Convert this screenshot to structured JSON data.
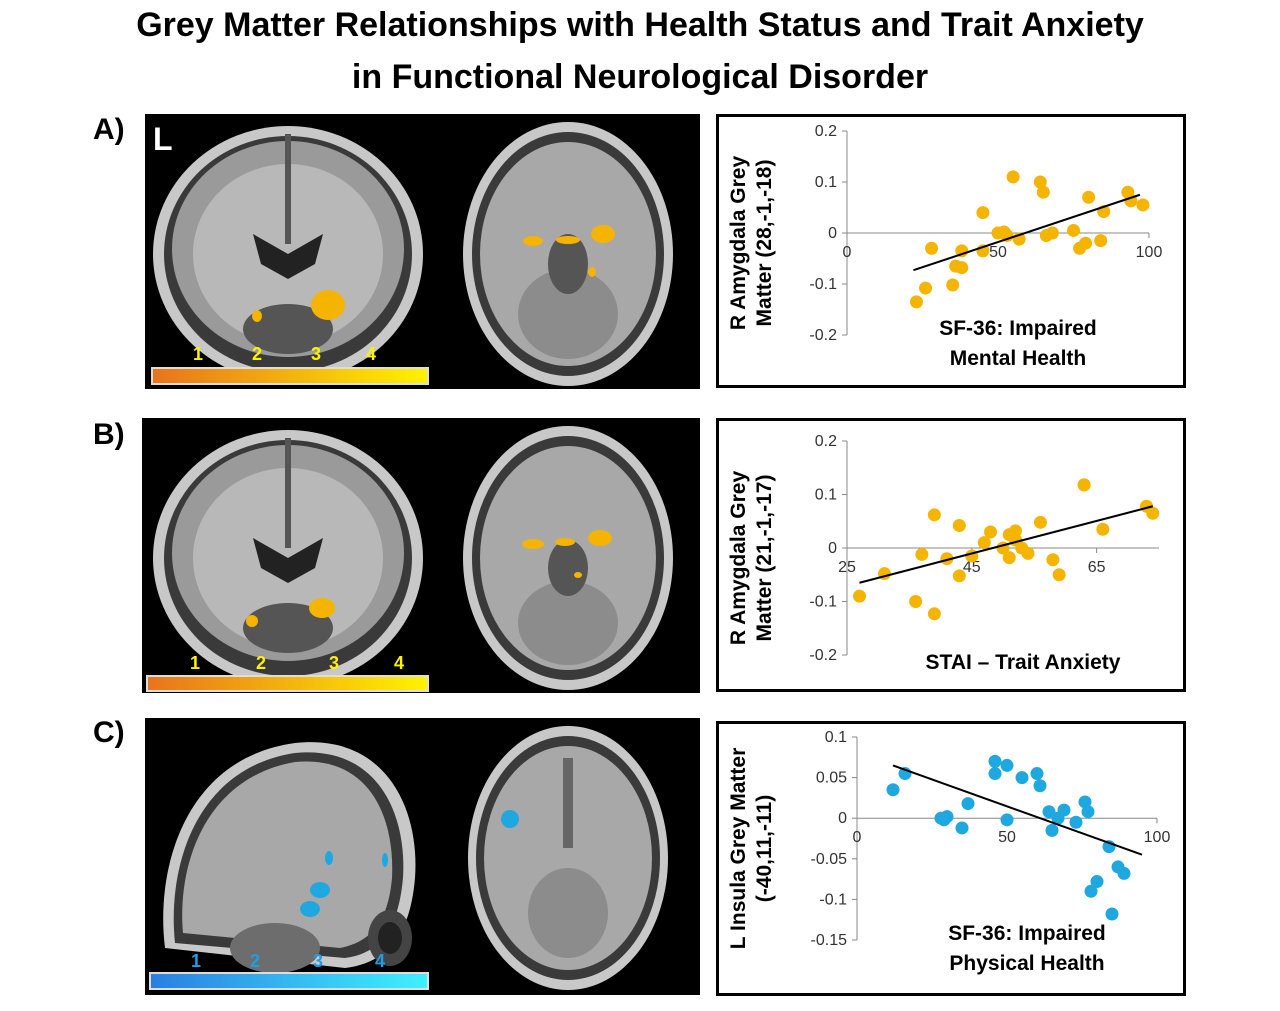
{
  "title": {
    "line1": "Grey Matter Relationships with Health Status and Trait Anxiety",
    "line2": "in Functional Neurological Disorder"
  },
  "colors": {
    "warm": "#f5b400",
    "cool": "#1fa8e0",
    "warm_bar_start": "#e8741c",
    "warm_bar_end": "#fff200",
    "cool_bar_start": "#2a7fe0",
    "cool_bar_end": "#3ff0ff"
  },
  "panels": {
    "a": {
      "label": "A)",
      "side_marker": "L",
      "colorbar_ticks": [
        "1",
        "2",
        "3",
        "4"
      ]
    },
    "b": {
      "label": "B)",
      "colorbar_ticks": [
        "1",
        "2",
        "3",
        "4"
      ]
    },
    "c": {
      "label": "C)",
      "colorbar_ticks": [
        "1",
        "2",
        "3",
        "4"
      ]
    }
  },
  "chart_data": [
    {
      "type": "scatter",
      "ylabel_line1": "R Amygdala Grey",
      "ylabel_line2": "Matter (28,-1,-18)",
      "xlabel_line1": "SF-36: Impaired",
      "xlabel_line2": "Mental Health",
      "xlim": [
        0,
        100
      ],
      "ylim": [
        -0.2,
        0.2
      ],
      "xticks": [
        0,
        50,
        100
      ],
      "yticks": [
        0.2,
        0.1,
        0,
        -0.1,
        -0.2
      ],
      "ytick_labels": [
        "0.2",
        "0.1",
        "0",
        "-0.1",
        "-0.2"
      ],
      "xtick_labels": [
        "0",
        "50",
        "100"
      ],
      "trendline": {
        "x": [
          22,
          97
        ],
        "y": [
          -0.073,
          0.075
        ]
      },
      "points": [
        [
          23,
          -0.135
        ],
        [
          26,
          -0.108
        ],
        [
          28,
          -0.03
        ],
        [
          35,
          -0.102
        ],
        [
          36,
          -0.065
        ],
        [
          38,
          -0.068
        ],
        [
          38,
          -0.035
        ],
        [
          45,
          -0.035
        ],
        [
          45,
          0.04
        ],
        [
          50,
          0.0
        ],
        [
          52,
          0.002
        ],
        [
          53,
          -0.005
        ],
        [
          55,
          0.11
        ],
        [
          57,
          -0.012
        ],
        [
          64,
          0.1
        ],
        [
          65,
          0.08
        ],
        [
          66,
          -0.005
        ],
        [
          68,
          0.0
        ],
        [
          75,
          0.005
        ],
        [
          77,
          -0.03
        ],
        [
          79,
          -0.02
        ],
        [
          80,
          0.07
        ],
        [
          84,
          -0.015
        ],
        [
          85,
          0.042
        ],
        [
          93,
          0.08
        ],
        [
          94,
          0.063
        ],
        [
          98,
          0.055
        ]
      ]
    },
    {
      "type": "scatter",
      "ylabel_line1": "R Amygdala Grey",
      "ylabel_line2": "Matter (21,-1,-17)",
      "xlabel_line1": "STAI – Trait Anxiety",
      "xlabel_line2": "",
      "xlim": [
        25,
        75
      ],
      "ylim": [
        -0.2,
        0.2
      ],
      "xticks": [
        25,
        45,
        65
      ],
      "yticks": [
        0.2,
        0.1,
        0,
        -0.1,
        -0.2
      ],
      "ytick_labels": [
        "0.2",
        "0.1",
        "0",
        "-0.1",
        "-0.2"
      ],
      "xtick_labels": [
        "25",
        "45",
        "65"
      ],
      "trendline": {
        "x": [
          27,
          74
        ],
        "y": [
          -0.065,
          0.078
        ]
      },
      "points": [
        [
          27,
          -0.09
        ],
        [
          31,
          -0.048
        ],
        [
          36,
          -0.1
        ],
        [
          37,
          -0.012
        ],
        [
          39,
          0.062
        ],
        [
          39,
          -0.123
        ],
        [
          41,
          -0.02
        ],
        [
          43,
          0.042
        ],
        [
          43,
          -0.052
        ],
        [
          45,
          -0.015
        ],
        [
          47,
          0.01
        ],
        [
          48,
          0.03
        ],
        [
          50,
          0.0
        ],
        [
          51,
          -0.018
        ],
        [
          51,
          0.025
        ],
        [
          52,
          0.015
        ],
        [
          52,
          0.032
        ],
        [
          53,
          0.0
        ],
        [
          54,
          -0.01
        ],
        [
          56,
          0.048
        ],
        [
          58,
          -0.022
        ],
        [
          59,
          -0.05
        ],
        [
          63,
          0.118
        ],
        [
          63,
          0.118
        ],
        [
          66,
          0.035
        ],
        [
          73,
          0.078
        ],
        [
          74,
          0.065
        ]
      ]
    },
    {
      "type": "scatter",
      "ylabel_line1": "L Insula Grey Matter",
      "ylabel_line2": "(-40,11,-11)",
      "xlabel_line1": "SF-36: Impaired",
      "xlabel_line2": "Physical Health",
      "xlim": [
        0,
        100
      ],
      "ylim": [
        -0.15,
        0.1
      ],
      "xticks": [
        0,
        50,
        100
      ],
      "yticks": [
        0.1,
        0.05,
        0,
        -0.05,
        -0.1,
        -0.15
      ],
      "ytick_labels": [
        "0.1",
        "0.05",
        "0",
        "-0.05",
        "-0.1",
        "-0.15"
      ],
      "xtick_labels": [
        "0",
        "50",
        "100"
      ],
      "trendline": {
        "x": [
          12,
          95
        ],
        "y": [
          0.065,
          -0.045
        ]
      },
      "points": [
        [
          12,
          0.035
        ],
        [
          16,
          0.055
        ],
        [
          28,
          0.0
        ],
        [
          29,
          -0.002
        ],
        [
          30,
          0.002
        ],
        [
          35,
          -0.012
        ],
        [
          37,
          0.018
        ],
        [
          46,
          0.07
        ],
        [
          46,
          0.055
        ],
        [
          50,
          0.065
        ],
        [
          50,
          -0.002
        ],
        [
          55,
          0.05
        ],
        [
          60,
          0.055
        ],
        [
          61,
          0.04
        ],
        [
          64,
          0.008
        ],
        [
          65,
          -0.015
        ],
        [
          67,
          0.0
        ],
        [
          69,
          0.01
        ],
        [
          73,
          -0.005
        ],
        [
          76,
          0.02
        ],
        [
          77,
          0.008
        ],
        [
          78,
          -0.09
        ],
        [
          80,
          -0.078
        ],
        [
          84,
          -0.035
        ],
        [
          85,
          -0.118
        ],
        [
          87,
          -0.06
        ],
        [
          89,
          -0.068
        ]
      ]
    }
  ]
}
